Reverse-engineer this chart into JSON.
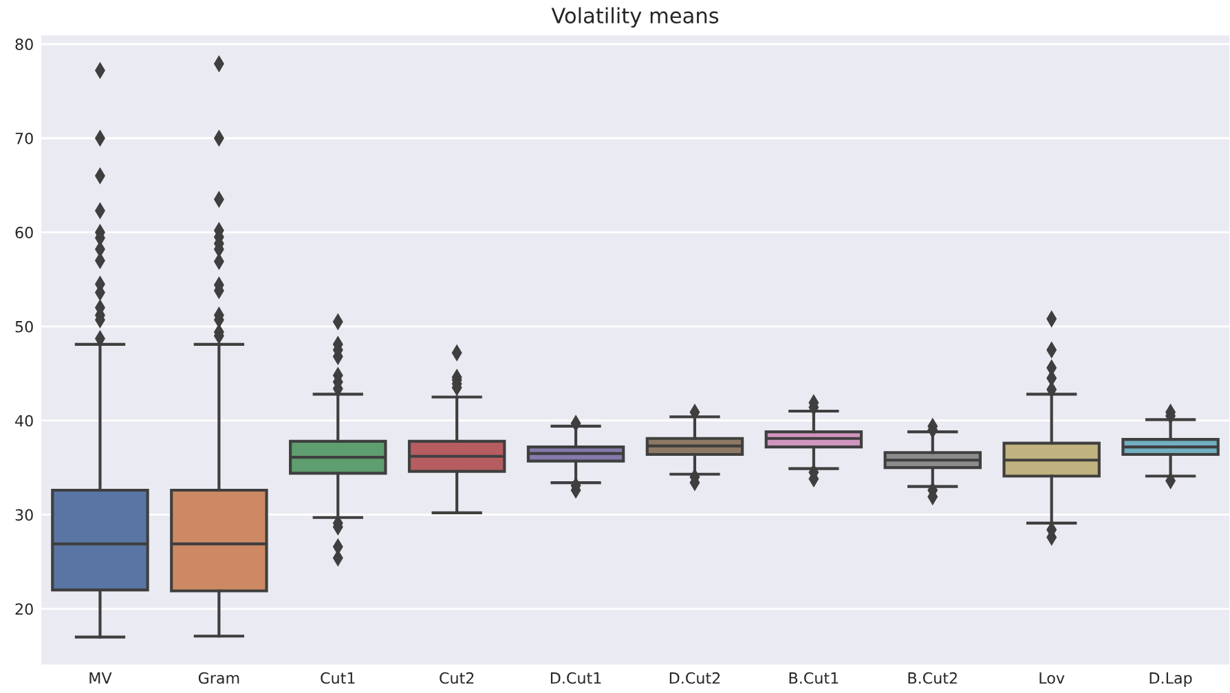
{
  "chart_data": {
    "type": "box",
    "title": "Volatility means",
    "categories": [
      "MV",
      "Gram",
      "Cut1",
      "Cut2",
      "D.Cut1",
      "D.Cut2",
      "B.Cut1",
      "B.Cut2",
      "Lov",
      "D.Lap"
    ],
    "colors": [
      "#5975a4",
      "#cc8963",
      "#5f9e6e",
      "#b55d60",
      "#857aab",
      "#8d7866",
      "#d095bf",
      "#8c8c8c",
      "#c1b37f",
      "#71aec0"
    ],
    "boxes": [
      {
        "low": 17.0,
        "q1": 22.0,
        "median": 26.9,
        "q3": 32.6,
        "high": 48.1,
        "outliers": [
          77.2,
          70.0,
          66.0,
          62.3,
          60.0,
          59.4,
          58.2,
          57.0,
          54.5,
          53.6,
          52.0,
          51.2,
          50.7,
          48.7
        ]
      },
      {
        "low": 17.1,
        "q1": 21.9,
        "median": 26.9,
        "q3": 32.6,
        "high": 48.1,
        "outliers": [
          77.9,
          70.0,
          63.5,
          60.2,
          59.5,
          58.8,
          58.2,
          56.9,
          54.4,
          53.8,
          51.2,
          50.7,
          49.4,
          49.0
        ]
      },
      {
        "low": 29.7,
        "q1": 34.4,
        "median": 36.1,
        "q3": 37.8,
        "high": 42.8,
        "outliers": [
          50.5,
          48.1,
          47.5,
          46.8,
          44.8,
          44.1,
          43.4,
          29.1,
          28.7,
          26.6,
          25.4
        ]
      },
      {
        "low": 30.2,
        "q1": 34.6,
        "median": 36.2,
        "q3": 37.8,
        "high": 42.5,
        "outliers": [
          47.2,
          44.6,
          44.3,
          43.9,
          43.5
        ]
      },
      {
        "low": 33.4,
        "q1": 35.7,
        "median": 36.5,
        "q3": 37.2,
        "high": 39.4,
        "outliers": [
          39.7,
          33.1,
          32.6
        ]
      },
      {
        "low": 34.3,
        "q1": 36.4,
        "median": 37.3,
        "q3": 38.1,
        "high": 40.4,
        "outliers": [
          40.9,
          34.0,
          33.4
        ]
      },
      {
        "low": 34.9,
        "q1": 37.2,
        "median": 38.1,
        "q3": 38.8,
        "high": 41.0,
        "outliers": [
          41.9,
          41.4,
          34.5,
          33.8
        ]
      },
      {
        "low": 33.0,
        "q1": 35.0,
        "median": 35.8,
        "q3": 36.6,
        "high": 38.8,
        "outliers": [
          39.4,
          39.0,
          32.6,
          31.9
        ]
      },
      {
        "low": 29.1,
        "q1": 34.1,
        "median": 35.8,
        "q3": 37.6,
        "high": 42.8,
        "outliers": [
          50.8,
          47.5,
          45.6,
          44.5,
          43.3,
          28.4,
          27.6
        ]
      },
      {
        "low": 34.1,
        "q1": 36.4,
        "median": 37.2,
        "q3": 38.0,
        "high": 40.1,
        "outliers": [
          40.9,
          40.5,
          33.6
        ]
      }
    ],
    "ylim": [
      14.0,
      81.0
    ],
    "yticks": [
      20,
      30,
      40,
      50,
      60,
      70,
      80
    ],
    "grid": "y",
    "marker": "diamond"
  }
}
